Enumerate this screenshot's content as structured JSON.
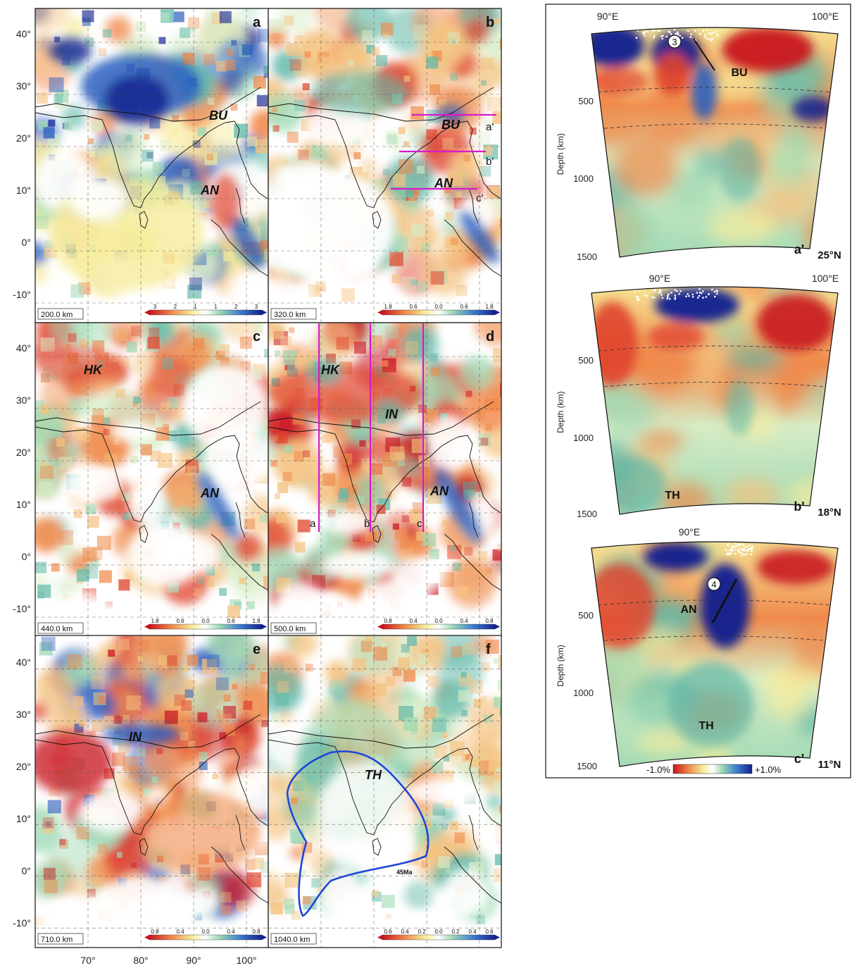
{
  "colors": {
    "deep_red": "#c8141e",
    "red": "#e0442e",
    "orange": "#f08a4b",
    "tan": "#f4c27f",
    "yellow": "#f6ec9c",
    "pale": "#d6ecc6",
    "mint": "#9ed9b4",
    "teal": "#5fb8a8",
    "blue": "#2c5fbf",
    "navy": "#12208f",
    "magenta": "#d81ac8",
    "plate_outline": "#1f46d8"
  },
  "map_axes": {
    "lat_ticks": [
      "40°",
      "30°",
      "20°",
      "10°",
      "0°",
      "-10°"
    ],
    "lon_ticks": [
      "70°",
      "80°",
      "90°",
      "100°"
    ]
  },
  "panels": [
    {
      "letter": "a",
      "depth": "200.0 km",
      "ticks": [
        "3",
        "2",
        "1",
        "1",
        "2",
        "3"
      ],
      "labels": [
        "BU",
        "AN"
      ]
    },
    {
      "letter": "b",
      "depth": "320.0 km",
      "ticks": [
        "1.8",
        "0.6",
        "0.0",
        "0.6",
        "1.8"
      ],
      "labels": [
        "BU",
        "AN"
      ],
      "line_labels": [
        "a'",
        "b'",
        "c'"
      ]
    },
    {
      "letter": "c",
      "depth": "440.0 km",
      "ticks": [
        "1.8",
        "0.6",
        "0.0",
        "0.6",
        "1.8"
      ],
      "labels": [
        "HK",
        "AN"
      ]
    },
    {
      "letter": "d",
      "depth": "500.0 km",
      "ticks": [
        "0.8",
        "0.4",
        "0.0",
        "0.4",
        "0.8"
      ],
      "labels": [
        "HK",
        "IN",
        "AN"
      ],
      "line_labels": [
        "a",
        "b",
        "c"
      ]
    },
    {
      "letter": "e",
      "depth": "710.0 km",
      "ticks": [
        "0.8",
        "0.4",
        "0.0",
        "0.4",
        "0.8"
      ],
      "labels": [
        "IN"
      ]
    },
    {
      "letter": "f",
      "depth": "1040.0 km",
      "ticks": [
        "0.6",
        "0.4",
        "0.2",
        "0.0",
        "0.2",
        "0.4",
        "0.6"
      ],
      "labels": [
        "TH"
      ],
      "annotation": "45Ma"
    }
  ],
  "sections": [
    {
      "id": "a'",
      "lat": "25°N",
      "lon_ticks": [
        "90°E",
        "100°E"
      ],
      "depth_ticks": [
        "500",
        "1000",
        "1500"
      ],
      "depth_label": "Depth (km)",
      "labels": [
        "BU"
      ],
      "marker": "3"
    },
    {
      "id": "b'",
      "lat": "18°N",
      "lon_ticks": [
        "90°E",
        "100°E"
      ],
      "depth_ticks": [
        "500",
        "1000",
        "1500"
      ],
      "depth_label": "Depth (km)",
      "labels": [
        "TH"
      ]
    },
    {
      "id": "c'",
      "lat": "11°N",
      "lon_ticks": [
        "90°E"
      ],
      "depth_ticks": [
        "500",
        "1000",
        "1500"
      ],
      "depth_label": "Depth (km)",
      "labels": [
        "AN",
        "TH"
      ],
      "marker": "4"
    }
  ],
  "section_colorbar": {
    "min": "-1.0%",
    "max": "+1.0%"
  }
}
